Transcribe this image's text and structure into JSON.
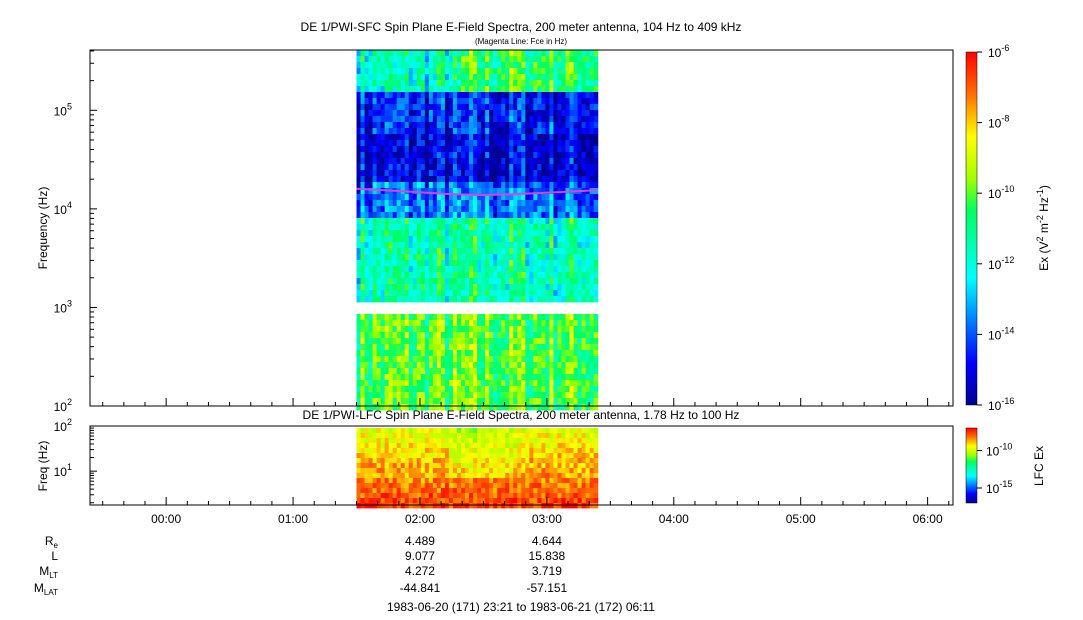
{
  "chart_data": [
    {
      "type": "heatmap",
      "title": "DE 1/PWI-SFC  Spin Plane E-Field Spectra, 200 meter antenna, 104 Hz to 409 kHz",
      "subtitle": "(Magenta Line: Fce in Hz)",
      "ylabel": "Frequency (Hz)",
      "ylim": [
        100,
        409000
      ],
      "yscale": "log",
      "yticks": [
        {
          "value": 100,
          "base": "10",
          "exp": "2"
        },
        {
          "value": 1000,
          "base": "10",
          "exp": "3"
        },
        {
          "value": 10000,
          "base": "10",
          "exp": "4"
        },
        {
          "value": 100000,
          "base": "10",
          "exp": "5"
        }
      ],
      "data_coverage_hours": [
        1.5,
        3.4
      ],
      "gap_hz": [
        900,
        1100
      ],
      "fce_line_color": "#e040e0",
      "fce_hz": [
        {
          "t": 1.5,
          "hz": 16000
        },
        {
          "t": 1.9,
          "hz": 15000
        },
        {
          "t": 2.2,
          "hz": 14200
        },
        {
          "t": 2.5,
          "hz": 13800
        },
        {
          "t": 2.8,
          "hz": 14200
        },
        {
          "t": 3.1,
          "hz": 14800
        },
        {
          "t": 3.4,
          "hz": 15500
        }
      ],
      "colorbar": {
        "label_prefix": "Ex (V",
        "label_m": " m",
        "label_hz": " Hz",
        "label_close": ")",
        "sup2": "2",
        "supm2": "-2",
        "supm1": "-1",
        "range_log10": [
          -16,
          -6
        ],
        "ticks": [
          {
            "base": "10",
            "exp": "-6"
          },
          {
            "base": "10",
            "exp": "-8"
          },
          {
            "base": "10",
            "exp": "-10"
          },
          {
            "base": "10",
            "exp": "-12"
          },
          {
            "base": "10",
            "exp": "-14"
          },
          {
            "base": "10",
            "exp": "-16"
          }
        ]
      }
    },
    {
      "type": "heatmap",
      "title": "DE 1/PWI-LFC  Spin Plane E-Field Spectra, 200 meter antenna, 1.78 Hz to 100 Hz",
      "ylabel": "Freq (Hz)",
      "ylim": [
        1.78,
        100
      ],
      "yscale": "log",
      "yticks": [
        {
          "value": 10,
          "base": "10",
          "exp": "1"
        },
        {
          "value": 100,
          "base": "10",
          "exp": "2"
        }
      ],
      "data_coverage_hours": [
        1.5,
        3.4
      ],
      "colorbar": {
        "label": "LFC Ex",
        "range_log10": [
          -17,
          -7
        ],
        "ticks": [
          {
            "base": "10",
            "exp": "-10"
          },
          {
            "base": "10",
            "exp": "-15"
          }
        ]
      }
    }
  ],
  "time_axis": {
    "start_hour": -0.6,
    "end_hour": 6.2,
    "tick_labels": [
      "00:00",
      "01:00",
      "02:00",
      "03:00",
      "04:00",
      "05:00",
      "06:00"
    ]
  },
  "ephemeris": {
    "rows": [
      {
        "label": "R",
        "sub": "e",
        "values": [
          "4.489",
          "4.644"
        ]
      },
      {
        "label": "L",
        "sub": "",
        "values": [
          "9.077",
          "15.838"
        ]
      },
      {
        "label": "M",
        "sub": "LT",
        "values": [
          "4.272",
          "3.719"
        ]
      },
      {
        "label": "M",
        "sub": "LAT",
        "values": [
          "-44.841",
          "-57.151"
        ]
      }
    ],
    "time_range": "1983-06-20 (171) 23:21 to 1983-06-21 (172) 06:11"
  }
}
